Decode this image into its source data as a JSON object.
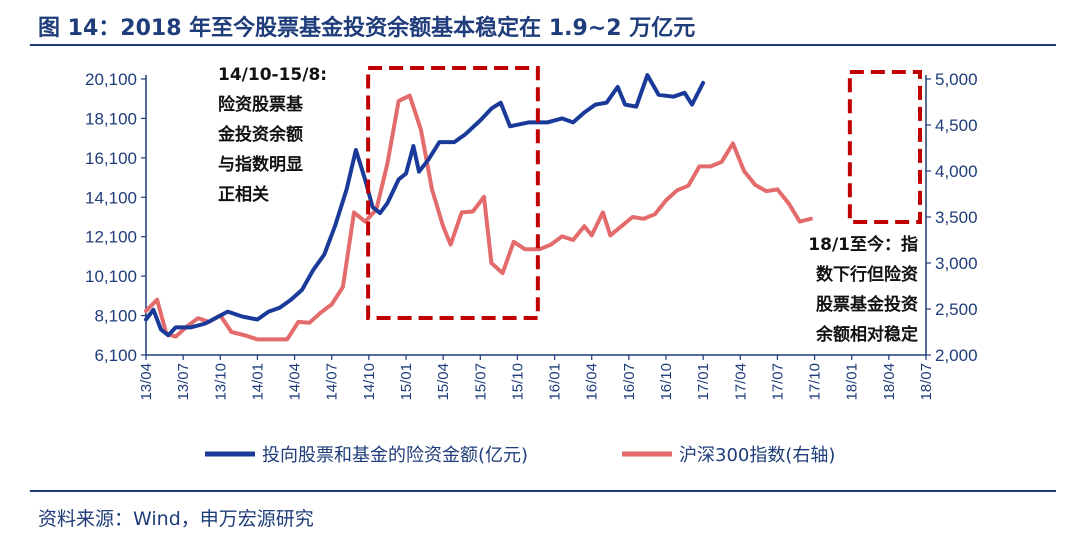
{
  "title": "图 14：2018 年至今股票基金投资余额基本稳定在 1.9~2 万亿元",
  "source": "资料来源：Wind，申万宏源研究",
  "colors": {
    "series_main": "#1a3a9a",
    "series_index": "#e36b6b",
    "highlight_box": "#c00000",
    "text": "#1f3d7a"
  },
  "chart_data": {
    "type": "line",
    "title": "",
    "xlabel": "",
    "ylabel": "",
    "x": [
      "13/04",
      "13/07",
      "13/10",
      "14/01",
      "14/04",
      "14/07",
      "14/10",
      "15/01",
      "15/04",
      "15/07",
      "15/10",
      "16/01",
      "16/04",
      "16/07",
      "16/10",
      "17/01",
      "17/04",
      "17/07",
      "17/10",
      "18/01",
      "18/04",
      "18/07"
    ],
    "left_axis": {
      "ylim": [
        6100,
        20100
      ],
      "ticks": [
        "6,100",
        "8,100",
        "10,100",
        "12,100",
        "14,100",
        "16,100",
        "18,100",
        "20,100"
      ]
    },
    "right_axis": {
      "ylim": [
        2000,
        5000
      ],
      "ticks": [
        "2,000",
        "2,500",
        "3,000",
        "3,500",
        "4,000",
        "4,500",
        "5,000"
      ]
    },
    "series": [
      {
        "name": "投向股票和基金的险资金额(亿元)",
        "axis": "left",
        "points": [
          [
            0,
            7900
          ],
          [
            0.2,
            8400
          ],
          [
            0.4,
            7400
          ],
          [
            0.6,
            7100
          ],
          [
            0.8,
            7500
          ],
          [
            1.2,
            7500
          ],
          [
            1.6,
            7700
          ],
          [
            2.2,
            8300
          ],
          [
            2.6,
            8050
          ],
          [
            3.0,
            7900
          ],
          [
            3.3,
            8300
          ],
          [
            3.6,
            8500
          ],
          [
            3.9,
            8900
          ],
          [
            4.2,
            9400
          ],
          [
            4.5,
            10400
          ],
          [
            4.8,
            11200
          ],
          [
            5.1,
            12700
          ],
          [
            5.4,
            14500
          ],
          [
            5.65,
            16500
          ],
          [
            5.9,
            15000
          ],
          [
            6.1,
            13600
          ],
          [
            6.3,
            13300
          ],
          [
            6.5,
            13800
          ],
          [
            6.8,
            15000
          ],
          [
            7.0,
            15300
          ],
          [
            7.2,
            16700
          ],
          [
            7.35,
            15400
          ],
          [
            7.6,
            16000
          ],
          [
            7.9,
            16900
          ],
          [
            8.3,
            16900
          ],
          [
            8.6,
            17300
          ],
          [
            9.0,
            18000
          ],
          [
            9.3,
            18600
          ],
          [
            9.55,
            18900
          ],
          [
            9.8,
            17700
          ],
          [
            10.3,
            17900
          ],
          [
            10.8,
            17900
          ],
          [
            11.2,
            18100
          ],
          [
            11.5,
            17900
          ],
          [
            11.8,
            18400
          ],
          [
            12.1,
            18800
          ],
          [
            12.4,
            18900
          ],
          [
            12.7,
            19700
          ],
          [
            12.9,
            18800
          ],
          [
            13.2,
            18700
          ],
          [
            13.5,
            20300
          ],
          [
            13.8,
            19300
          ],
          [
            14.2,
            19200
          ],
          [
            14.5,
            19400
          ],
          [
            14.7,
            18800
          ],
          [
            15.0,
            19900
          ]
        ]
      },
      {
        "name": "沪深300指数(右轴)",
        "axis": "right",
        "points": [
          [
            0,
            2480
          ],
          [
            0.3,
            2600
          ],
          [
            0.55,
            2230
          ],
          [
            0.8,
            2200
          ],
          [
            1.1,
            2310
          ],
          [
            1.4,
            2400
          ],
          [
            1.7,
            2360
          ],
          [
            2.0,
            2430
          ],
          [
            2.3,
            2250
          ],
          [
            2.7,
            2210
          ],
          [
            3.0,
            2170
          ],
          [
            3.4,
            2170
          ],
          [
            3.8,
            2170
          ],
          [
            4.1,
            2360
          ],
          [
            4.4,
            2350
          ],
          [
            4.7,
            2460
          ],
          [
            5.0,
            2550
          ],
          [
            5.3,
            2740
          ],
          [
            5.6,
            3550
          ],
          [
            5.9,
            3450
          ],
          [
            6.2,
            3580
          ],
          [
            6.5,
            4080
          ],
          [
            6.8,
            4760
          ],
          [
            7.1,
            4820
          ],
          [
            7.4,
            4450
          ],
          [
            7.7,
            3800
          ],
          [
            8.0,
            3400
          ],
          [
            8.2,
            3200
          ],
          [
            8.5,
            3550
          ],
          [
            8.8,
            3560
          ],
          [
            9.1,
            3720
          ],
          [
            9.3,
            3000
          ],
          [
            9.6,
            2890
          ],
          [
            9.9,
            3230
          ],
          [
            10.2,
            3150
          ],
          [
            10.6,
            3150
          ],
          [
            10.9,
            3200
          ],
          [
            11.2,
            3290
          ],
          [
            11.5,
            3250
          ],
          [
            11.8,
            3400
          ],
          [
            12.0,
            3300
          ],
          [
            12.3,
            3550
          ],
          [
            12.5,
            3300
          ],
          [
            12.8,
            3400
          ],
          [
            13.1,
            3500
          ],
          [
            13.4,
            3480
          ],
          [
            13.7,
            3530
          ],
          [
            14.0,
            3680
          ],
          [
            14.3,
            3790
          ],
          [
            14.6,
            3840
          ],
          [
            14.9,
            4050
          ],
          [
            15.2,
            4050
          ],
          [
            15.5,
            4100
          ],
          [
            15.8,
            4300
          ],
          [
            16.1,
            4000
          ],
          [
            16.4,
            3850
          ],
          [
            16.7,
            3780
          ],
          [
            17.0,
            3800
          ],
          [
            17.3,
            3650
          ],
          [
            17.6,
            3450
          ],
          [
            17.9,
            3480
          ]
        ]
      }
    ],
    "legend": {
      "position": "bottom"
    },
    "highlights": [
      {
        "label_lines": [
          "14/10-15/8:",
          "险资股票基",
          "金投资余额",
          "与指数明显",
          "正相关"
        ]
      },
      {
        "label_lines": [
          "18/1至今：指",
          "数下行但险资",
          "股票基金投资",
          "余额相对稳定"
        ]
      }
    ]
  }
}
